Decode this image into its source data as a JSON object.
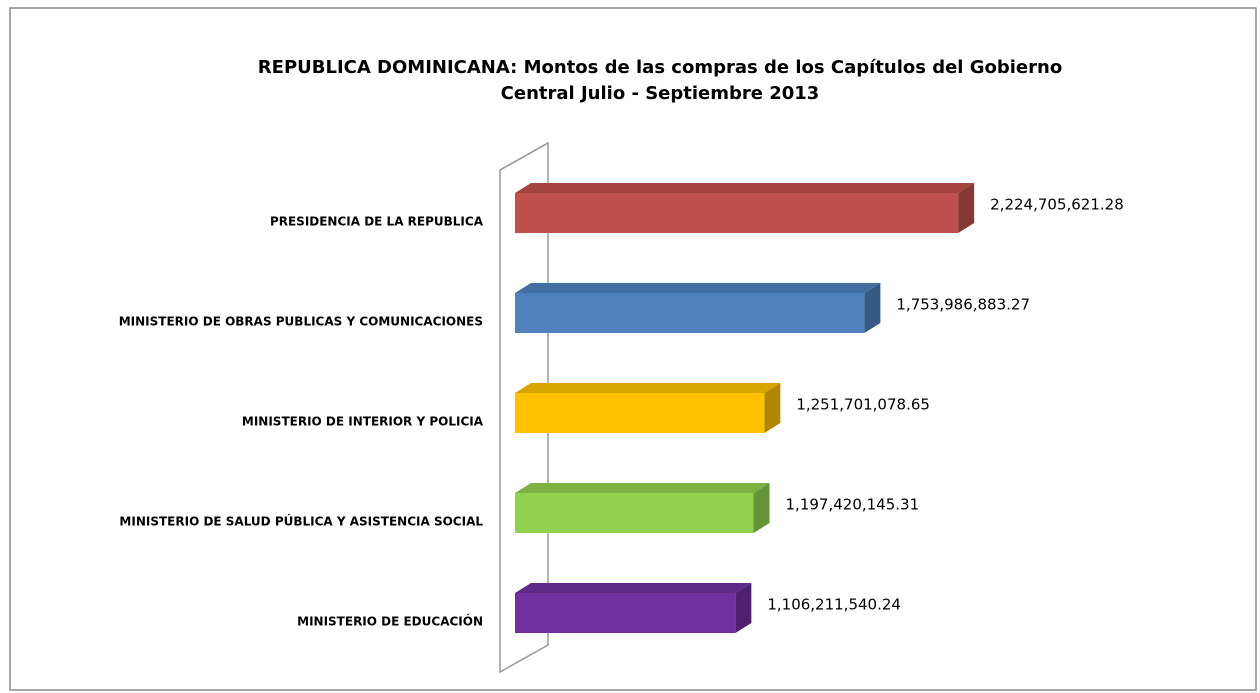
{
  "chart_data": {
    "type": "bar3d-horizontal",
    "title": [
      "REPUBLICA DOMINICANA: Montos de las compras de los Capítulos del Gobierno",
      "Central Julio - Septiembre 2013"
    ],
    "categories": [
      "PRESIDENCIA DE LA REPUBLICA",
      "MINISTERIO DE OBRAS PUBLICAS Y COMUNICACIONES",
      "MINISTERIO DE  INTERIOR Y POLICIA",
      "MINISTERIO DE SALUD PÚBLICA Y ASISTENCIA SOCIAL",
      "MINISTERIO DE EDUCACIÓN"
    ],
    "values": [
      2224705621.28,
      1753986883.27,
      1251701078.65,
      1197420145.31,
      1106211540.24
    ],
    "value_labels": [
      "2,224,705,621.28",
      "1,753,986,883.27",
      "1,251,701,078.65",
      "1,197,420,145.31",
      "1,106,211,540.24"
    ],
    "colors": [
      "#c0504d",
      "#4f81bd",
      "#ffc000",
      "#92d050",
      "#7030a0"
    ],
    "xlim": [
      0,
      2500000000
    ]
  }
}
